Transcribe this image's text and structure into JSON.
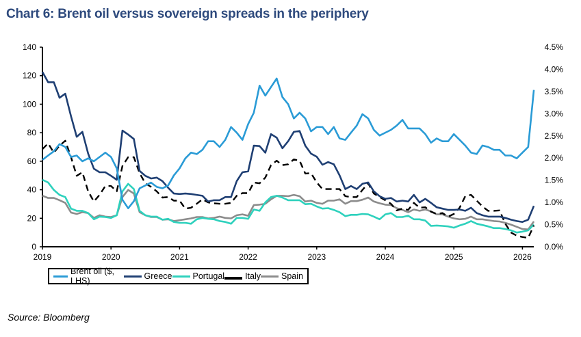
{
  "title": "Chart 6: Brent oil versus sovereign spreads in the periphery",
  "source": "Source: Bloomberg",
  "chart_data": {
    "type": "line",
    "title": "Chart 6: Brent oil versus sovereign spreads in the periphery",
    "x": [
      "2019-01",
      "2019-02",
      "2019-03",
      "2019-04",
      "2019-05",
      "2019-06",
      "2019-07",
      "2019-08",
      "2019-09",
      "2019-10",
      "2019-11",
      "2019-12",
      "2020-01",
      "2020-02",
      "2020-03",
      "2020-04",
      "2020-05",
      "2020-06",
      "2020-07",
      "2020-08",
      "2020-09",
      "2020-10",
      "2020-11",
      "2020-12",
      "2021-01",
      "2021-02",
      "2021-03",
      "2021-04",
      "2021-05",
      "2021-06",
      "2021-07",
      "2021-08",
      "2021-09",
      "2021-10",
      "2021-11",
      "2021-12",
      "2022-01",
      "2022-02",
      "2022-03",
      "2022-04",
      "2022-05",
      "2022-06",
      "2022-07",
      "2022-08",
      "2022-09",
      "2022-10",
      "2022-11",
      "2022-12",
      "2023-01",
      "2023-02",
      "2023-03",
      "2023-04",
      "2023-05",
      "2023-06",
      "2023-07",
      "2023-08",
      "2023-09",
      "2023-10",
      "2023-11",
      "2023-12",
      "2024-01",
      "2024-02",
      "2024-03",
      "2024-04",
      "2024-05",
      "2024-06",
      "2024-07",
      "2024-08",
      "2024-09",
      "2024-10",
      "2024-11",
      "2024-12",
      "2025-01",
      "2025-02",
      "2025-03",
      "2025-04",
      "2025-05",
      "2025-06",
      "2025-07",
      "2025-08",
      "2025-09",
      "2025-10",
      "2025-11",
      "2025-12",
      "2026-01",
      "2026-02",
      "2026-03"
    ],
    "x_ticks": [
      "2019",
      "2020",
      "2021",
      "2022",
      "2023",
      "2024",
      "2025",
      "2026"
    ],
    "y_left": {
      "range": [
        0,
        140
      ],
      "ticks": [
        "0",
        "20",
        "40",
        "60",
        "80",
        "100",
        "120",
        "140"
      ]
    },
    "y_right": {
      "range": [
        0,
        4.5
      ],
      "unit": "%",
      "ticks": [
        "0.0%",
        "0.5%",
        "1.0%",
        "1.5%",
        "2.0%",
        "2.5%",
        "3.0%",
        "3.5%",
        "4.0%",
        "4.5%"
      ]
    },
    "grid": false,
    "legend_position": "bottom",
    "series": [
      {
        "name": "Brent oil ($, LHS)",
        "axis": "left",
        "color": "#2a9bd6",
        "dashed": false,
        "values": [
          61,
          64,
          67,
          72,
          70,
          63,
          64,
          60,
          62,
          60,
          63,
          66,
          63,
          55,
          33,
          27,
          32,
          41,
          43,
          45,
          42,
          41,
          43,
          50,
          55,
          62,
          66,
          65,
          68,
          74,
          74,
          70,
          75,
          84,
          80,
          75,
          86,
          94,
          113,
          106,
          112,
          118,
          105,
          100,
          90,
          94,
          90,
          81,
          84,
          84,
          79,
          84,
          76,
          75,
          80,
          85,
          93,
          90,
          82,
          78,
          80,
          82,
          85,
          89,
          83,
          83,
          83,
          79,
          73,
          76,
          74,
          74,
          79,
          75,
          71,
          66,
          65,
          71,
          70,
          68,
          68,
          64,
          64,
          62,
          66,
          70,
          110
        ]
      },
      {
        "name": "Greece",
        "axis": "right",
        "color": "#1f3f73",
        "dashed": false,
        "values": [
          3.94,
          3.71,
          3.71,
          3.36,
          3.45,
          2.94,
          2.48,
          2.59,
          2.1,
          1.76,
          1.68,
          1.68,
          1.6,
          1.51,
          2.62,
          2.53,
          2.43,
          1.71,
          1.6,
          1.54,
          1.56,
          1.48,
          1.33,
          1.2,
          1.19,
          1.2,
          1.19,
          1.17,
          1.15,
          1.02,
          1.05,
          1.05,
          1.12,
          1.12,
          1.48,
          1.68,
          1.7,
          2.28,
          2.27,
          2.12,
          2.54,
          2.46,
          2.22,
          2.38,
          2.59,
          2.61,
          2.28,
          2.1,
          2.03,
          1.85,
          1.91,
          1.86,
          1.61,
          1.3,
          1.37,
          1.3,
          1.42,
          1.45,
          1.25,
          1.14,
          1.08,
          1.1,
          1.02,
          1.04,
          1.02,
          1.17,
          1.0,
          1.08,
          0.99,
          0.89,
          0.86,
          0.83,
          0.83,
          0.84,
          0.81,
          0.88,
          0.76,
          0.71,
          0.68,
          0.68,
          0.68,
          0.65,
          0.61,
          0.58,
          0.56,
          0.61,
          0.92
        ]
      },
      {
        "name": "Portugal",
        "axis": "right",
        "color": "#2ed1bd",
        "dashed": false,
        "values": [
          1.51,
          1.45,
          1.28,
          1.17,
          1.12,
          0.86,
          0.81,
          0.81,
          0.76,
          0.62,
          0.68,
          0.67,
          0.65,
          0.71,
          1.25,
          1.42,
          1.3,
          0.81,
          0.71,
          0.68,
          0.68,
          0.61,
          0.63,
          0.56,
          0.54,
          0.54,
          0.52,
          0.62,
          0.65,
          0.63,
          0.62,
          0.58,
          0.56,
          0.52,
          0.65,
          0.65,
          0.63,
          0.84,
          0.81,
          1.0,
          1.12,
          1.15,
          1.11,
          1.05,
          1.05,
          1.05,
          0.96,
          0.97,
          0.91,
          0.86,
          0.87,
          0.83,
          0.78,
          0.69,
          0.72,
          0.72,
          0.74,
          0.73,
          0.68,
          0.62,
          0.73,
          0.76,
          0.67,
          0.67,
          0.7,
          0.62,
          0.62,
          0.59,
          0.47,
          0.48,
          0.47,
          0.46,
          0.43,
          0.48,
          0.52,
          0.58,
          0.52,
          0.49,
          0.46,
          0.42,
          0.42,
          0.4,
          0.37,
          0.32,
          0.34,
          0.37,
          0.5
        ]
      },
      {
        "name": "Italy",
        "axis": "right",
        "color": "#000000",
        "dashed": true,
        "values": [
          2.2,
          2.33,
          2.12,
          2.28,
          2.39,
          2.02,
          1.6,
          1.68,
          1.25,
          1.02,
          1.17,
          1.37,
          1.37,
          1.25,
          1.82,
          2.02,
          2.02,
          1.66,
          1.43,
          1.35,
          1.25,
          1.11,
          1.12,
          1.04,
          1.04,
          0.86,
          0.88,
          0.97,
          1.07,
          1.0,
          0.98,
          0.97,
          0.97,
          0.99,
          1.15,
          1.21,
          1.21,
          1.45,
          1.43,
          1.56,
          1.84,
          1.94,
          1.84,
          1.86,
          1.97,
          1.94,
          1.65,
          1.66,
          1.45,
          1.3,
          1.3,
          1.3,
          1.3,
          1.14,
          1.12,
          1.12,
          1.28,
          1.43,
          1.2,
          1.12,
          1.05,
          0.97,
          0.82,
          0.86,
          0.83,
          0.99,
          0.88,
          0.89,
          0.79,
          0.74,
          0.76,
          0.68,
          0.74,
          0.88,
          1.14,
          1.17,
          1.04,
          0.91,
          0.81,
          0.81,
          0.82,
          0.52,
          0.32,
          0.25,
          0.22,
          0.2,
          0.48
        ]
      },
      {
        "name": "Spain",
        "axis": "right",
        "color": "#8c8c8c",
        "dashed": false,
        "values": [
          1.15,
          1.1,
          1.1,
          1.05,
          0.99,
          0.77,
          0.74,
          0.78,
          0.76,
          0.65,
          0.71,
          0.68,
          0.67,
          0.71,
          1.12,
          1.28,
          1.2,
          0.78,
          0.71,
          0.67,
          0.67,
          0.61,
          0.62,
          0.58,
          0.6,
          0.62,
          0.64,
          0.67,
          0.67,
          0.64,
          0.65,
          0.68,
          0.65,
          0.64,
          0.71,
          0.73,
          0.7,
          0.94,
          0.95,
          0.97,
          1.07,
          1.15,
          1.15,
          1.14,
          1.17,
          1.14,
          1.02,
          1.04,
          0.99,
          0.97,
          1.04,
          1.04,
          1.07,
          0.97,
          1.03,
          1.03,
          1.06,
          1.11,
          1.02,
          0.98,
          0.95,
          0.94,
          0.87,
          0.83,
          0.78,
          0.84,
          0.81,
          0.84,
          0.8,
          0.73,
          0.73,
          0.68,
          0.64,
          0.62,
          0.63,
          0.68,
          0.62,
          0.62,
          0.6,
          0.58,
          0.57,
          0.54,
          0.5,
          0.45,
          0.4,
          0.39,
          0.57
        ]
      }
    ]
  }
}
